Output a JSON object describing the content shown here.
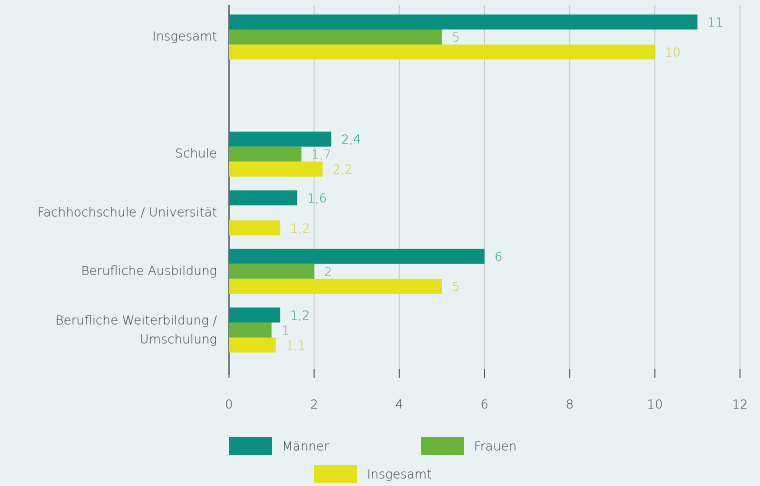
{
  "chart_data": {
    "type": "bar",
    "orientation": "horizontal",
    "categories": [
      "Insgesamt",
      null,
      "Schule",
      "Fachhochschule / Universität",
      "Berufliche Ausbildung",
      "Berufliche Weiterbildung /\nUmschulung"
    ],
    "series": [
      {
        "name": "Männer",
        "color": "#0b8f80",
        "values": [
          11,
          null,
          2.4,
          1.6,
          6,
          1.2
        ],
        "value_labels": [
          "11",
          null,
          "2,4",
          "1,6",
          "6",
          "1,2"
        ]
      },
      {
        "name": "Frauen",
        "color": "#6cb33e",
        "values": [
          5,
          null,
          1.7,
          null,
          2,
          1
        ],
        "value_labels": [
          "5",
          null,
          "1,7",
          null,
          "2",
          "1"
        ]
      },
      {
        "name": "Insgesamt",
        "color": "#e3e21c",
        "values": [
          10,
          null,
          2.2,
          1.2,
          5,
          1.1
        ],
        "value_labels": [
          "10",
          null,
          "2,2",
          "1,2",
          "5",
          "1,1"
        ]
      }
    ],
    "xlim": [
      0,
      12
    ],
    "xticks": [
      0,
      2,
      4,
      6,
      8,
      10,
      12
    ],
    "grid": true
  }
}
